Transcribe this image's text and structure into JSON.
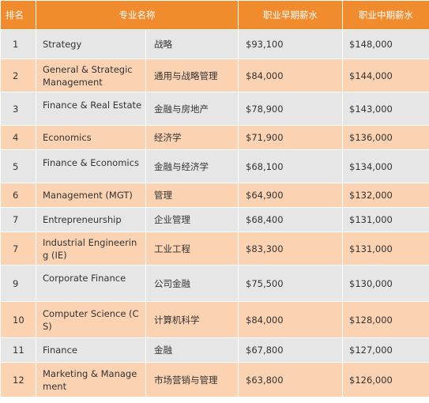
{
  "headers": {
    "rank": "排名",
    "major": "专业名称",
    "early": "职业早期薪水",
    "mid": "职业中期薪水"
  },
  "rows": [
    {
      "rank": "1",
      "en": "Strategy",
      "cn": "战略",
      "early": "$93,100",
      "mid": "$148,000"
    },
    {
      "rank": "2",
      "en": "General & Strategic Management",
      "cn": "通用与战略管理",
      "early": "$84,000",
      "mid": "$144,000"
    },
    {
      "rank": "3",
      "en": "Finance & Real Estate",
      "cn": "金融与房地产",
      "early": "$78,900",
      "mid": "$143,000"
    },
    {
      "rank": "4",
      "en": "Economics",
      "cn": "经济学",
      "early": "$71,900",
      "mid": "$136,000"
    },
    {
      "rank": "5",
      "en": "Finance & Economics",
      "cn": "金融与经济学",
      "early": "$68,100",
      "mid": "$134,000"
    },
    {
      "rank": "6",
      "en": "Management (MGT)",
      "cn": "管理",
      "early": "$64,900",
      "mid": "$132,000"
    },
    {
      "rank": "7",
      "en": "Entrepreneurship",
      "cn": "企业管理",
      "early": "$68,400",
      "mid": "$131,000"
    },
    {
      "rank": "7",
      "en": "Industrial Engineering (IE)",
      "cn": "工业工程",
      "early": "$83,300",
      "mid": "$131,000"
    },
    {
      "rank": "9",
      "en": "Corporate Finance",
      "cn": "公司金融",
      "early": "$75,500",
      "mid": "$130,000"
    },
    {
      "rank": "10",
      "en": "Computer Science (CS)",
      "cn": "计算机科学",
      "early": "$84,000",
      "mid": "$128,000"
    },
    {
      "rank": "11",
      "en": "Finance",
      "cn": "金融",
      "early": "$67,800",
      "mid": "$127,000"
    },
    {
      "rank": "12",
      "en": "Marketing & Management",
      "cn": "市场营销与管理",
      "early": "$63,800",
      "mid": "$126,000"
    }
  ]
}
